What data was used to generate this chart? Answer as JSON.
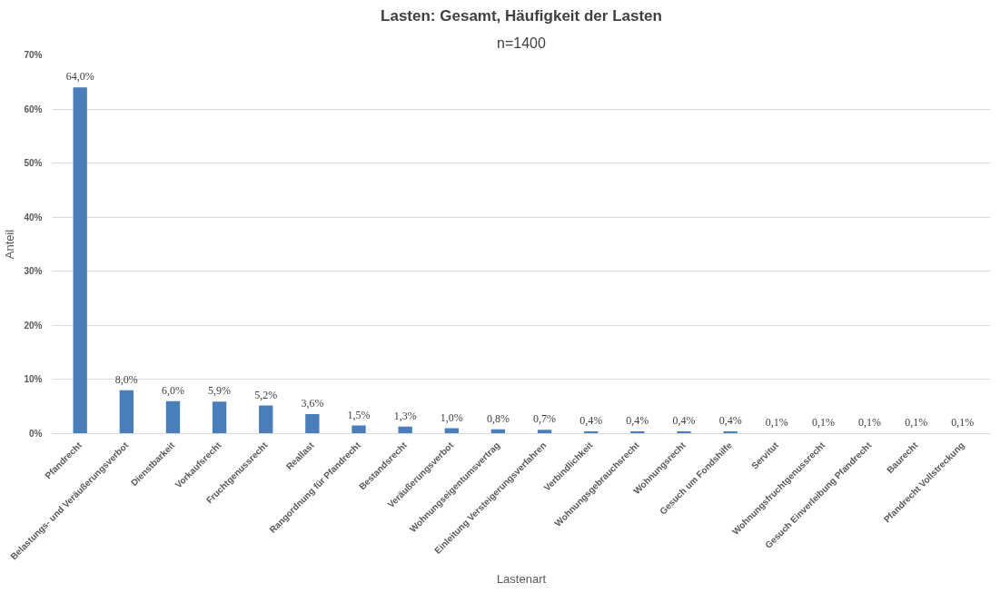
{
  "chart_data": {
    "type": "bar",
    "title": "Lasten: Gesamt, Häufigkeit der Lasten",
    "subtitle": "n=1400",
    "xlabel": "Lastenart",
    "ylabel": "Anteil",
    "categories": [
      "Pfandrecht",
      "Belastungs- und Veräußerungsverbot",
      "Dienstbarkeit",
      "Vorkaufsrecht",
      "Fruchtgenussrecht",
      "Reallast",
      "Rangordnung für Pfandrecht",
      "Bestandsrecht",
      "Veräußerungsverbot",
      "Wohnungseigentumsvertrag",
      "Einleitung Versteigerungsverfahren",
      "Verbindlichkeit",
      "Wohnungsgebrauchsrecht",
      "Wohnungsrecht",
      "Gesuch um Fondshilfe",
      "Servitut",
      "Wohnungsfruchtgenussrecht",
      "Gesuch Einverleibung Pfandrecht",
      "Baurecht",
      "Pfandrecht Vollstreckung"
    ],
    "values": [
      64.0,
      8.0,
      6.0,
      5.9,
      5.2,
      3.6,
      1.5,
      1.3,
      1.0,
      0.8,
      0.7,
      0.4,
      0.4,
      0.4,
      0.4,
      0.1,
      0.1,
      0.1,
      0.1,
      0.1
    ],
    "value_labels": [
      "64,0%",
      "8,0%",
      "6,0%",
      "5,9%",
      "5,2%",
      "3,6%",
      "1,5%",
      "1,3%",
      "1,0%",
      "0,8%",
      "0,7%",
      "0,4%",
      "0,4%",
      "0,4%",
      "0,4%",
      "0,1%",
      "0,1%",
      "0,1%",
      "0,1%",
      "0,1%"
    ],
    "color": "#4a7ebb",
    "ylim": [
      0,
      70
    ],
    "yticks": [
      {
        "value": 0,
        "label": "0%"
      },
      {
        "value": 10,
        "label": "10%"
      },
      {
        "value": 20,
        "label": "20%"
      },
      {
        "value": 30,
        "label": "30%"
      },
      {
        "value": 40,
        "label": "40%"
      },
      {
        "value": 50,
        "label": "50%"
      },
      {
        "value": 60,
        "label": "60%"
      },
      {
        "value": 70,
        "label": "70%"
      }
    ],
    "grid": "y"
  }
}
